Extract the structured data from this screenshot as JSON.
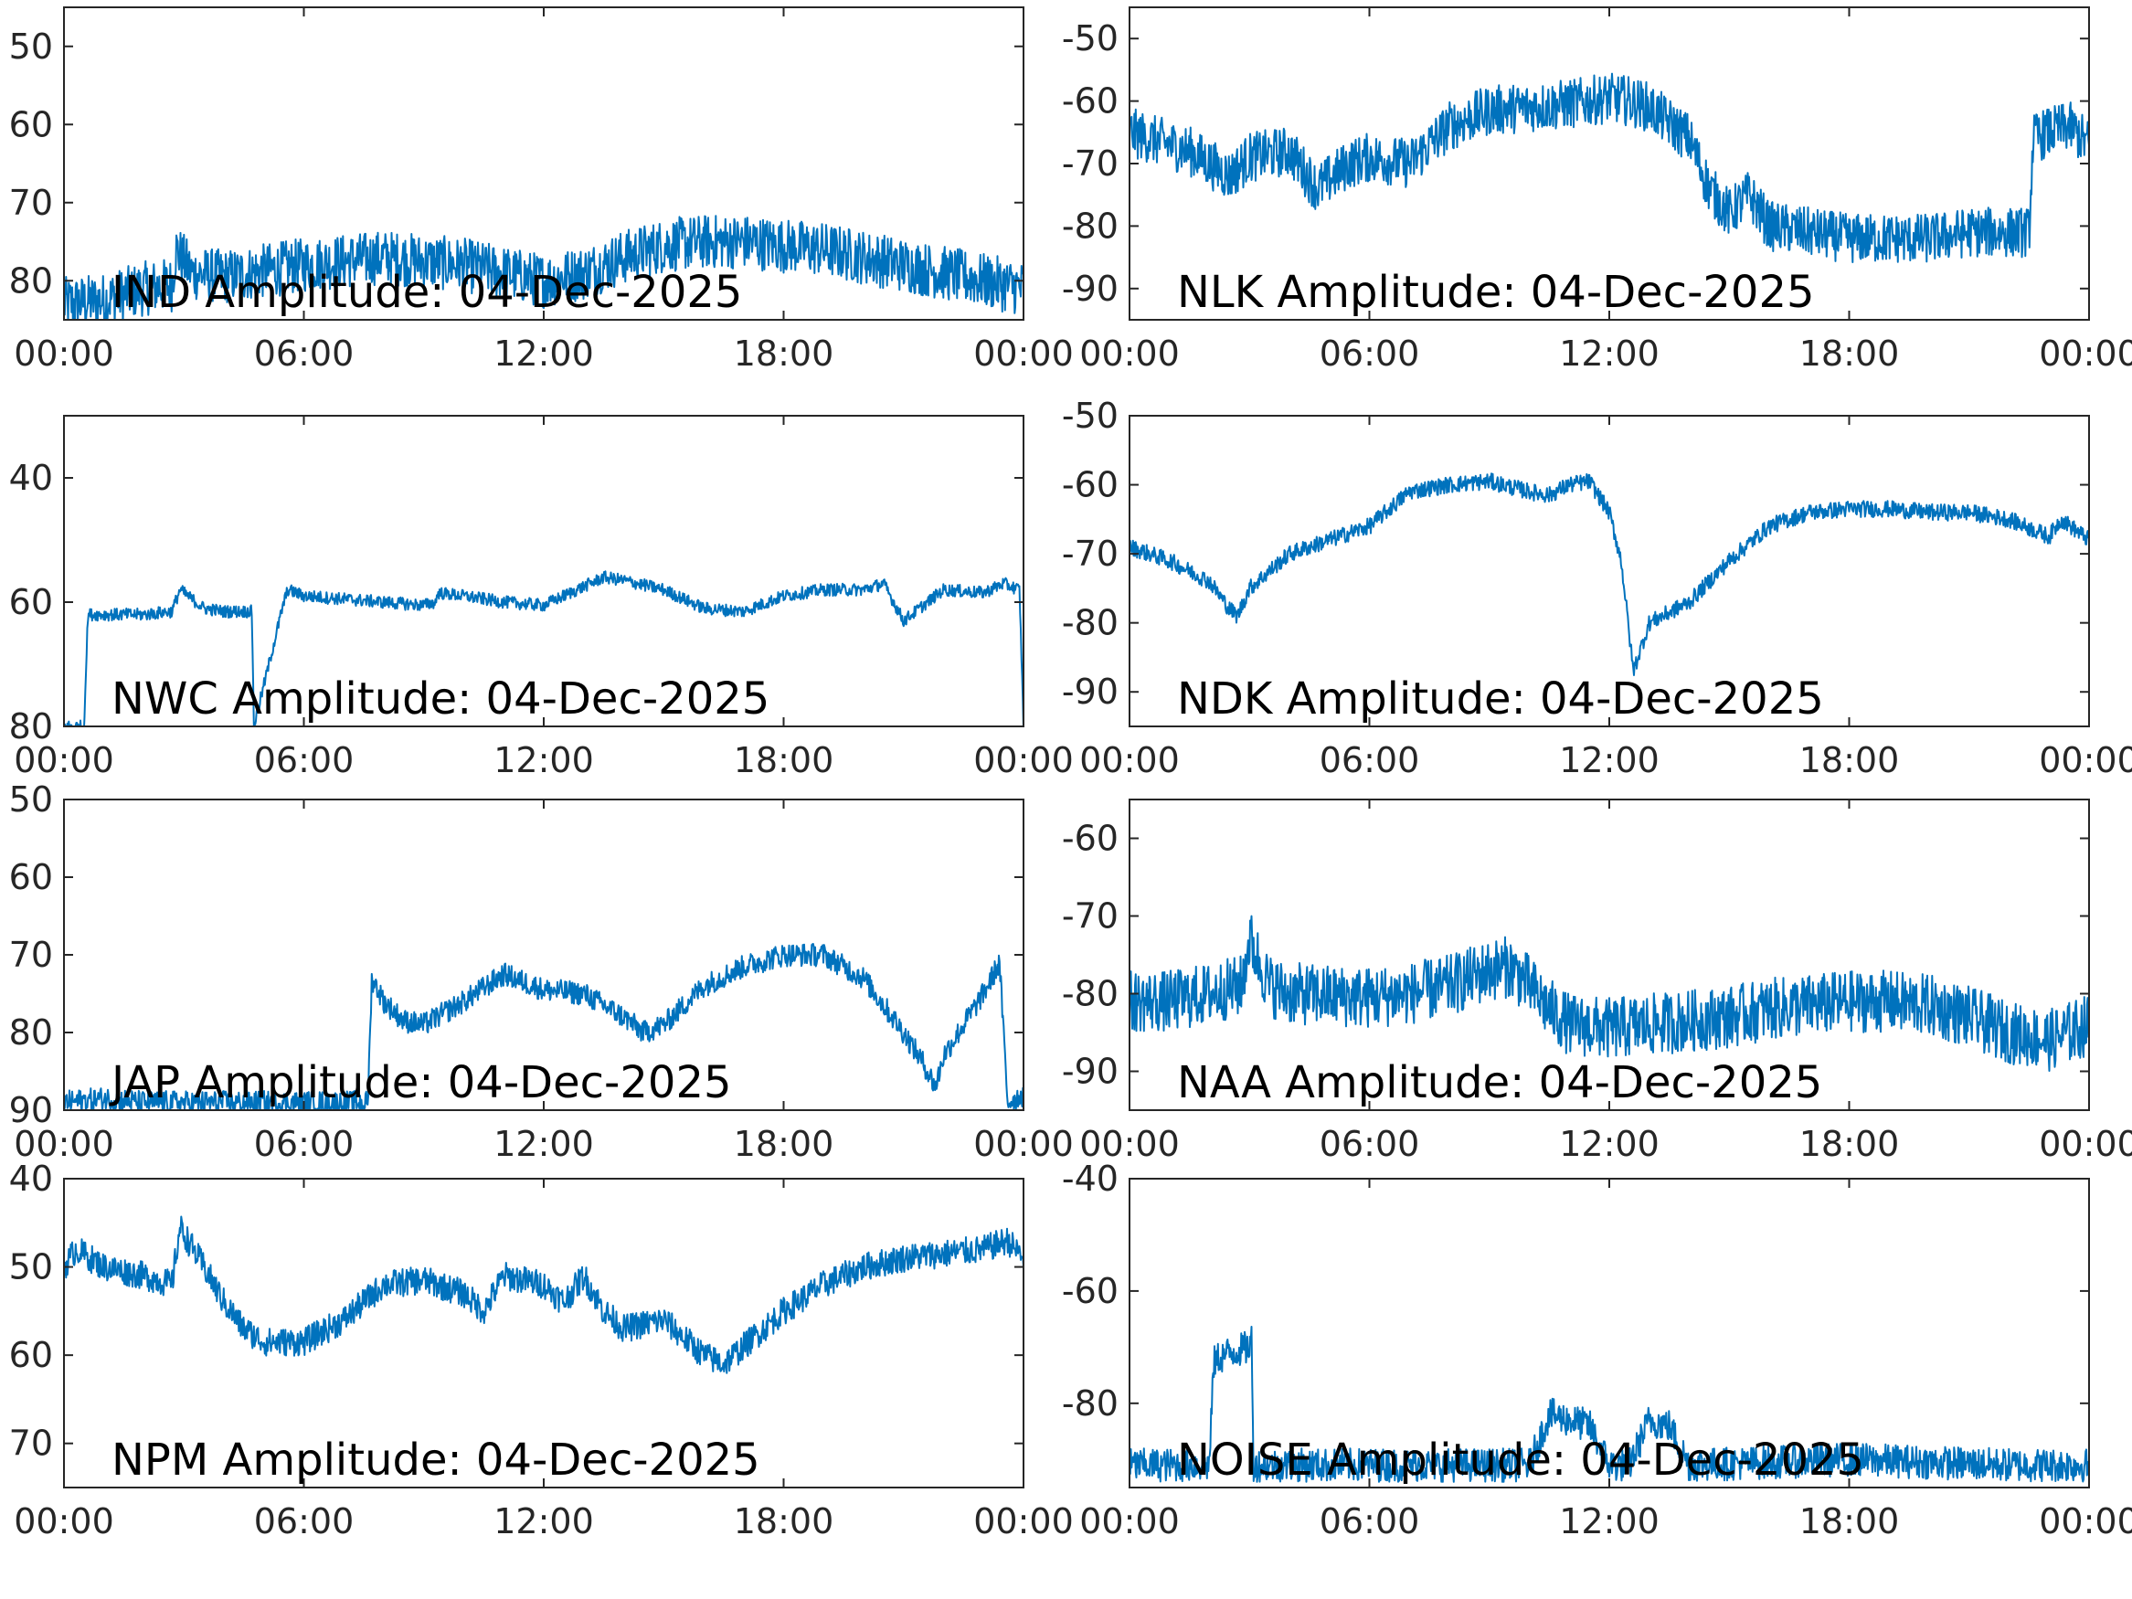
{
  "figure": {
    "line_color": "#0072BD",
    "background": "#ffffff"
  },
  "chart_data": [
    {
      "type": "line",
      "title": "IND Amplitude: 04-Dec-2025",
      "x_ticks": [
        "00:00",
        "06:00",
        "12:00",
        "18:00",
        "00:00"
      ],
      "xlim": [
        0,
        24
      ],
      "ylim": [
        -85,
        -45
      ],
      "yticks": [
        -80,
        -70,
        -60,
        -50
      ],
      "ytick_labels": [
        "80",
        "70",
        "60",
        "50"
      ],
      "series": [
        {
          "name": "IND",
          "x": [
            0,
            1,
            2,
            2.7,
            2.8,
            3.2,
            4,
            6,
            8,
            10,
            12,
            13,
            14,
            15,
            16,
            17,
            18,
            19,
            20,
            21,
            22,
            23,
            24
          ],
          "y": [
            -83,
            -82.5,
            -81,
            -80.5,
            -76,
            -79,
            -79.5,
            -78,
            -77,
            -78,
            -80,
            -79,
            -77,
            -75.5,
            -75,
            -75,
            -75.5,
            -76,
            -77,
            -78,
            -79,
            -80,
            -81
          ],
          "noise": 3.5
        }
      ]
    },
    {
      "type": "line",
      "title": "NLK Amplitude: 04-Dec-2025",
      "x_ticks": [
        "00:00",
        "06:00",
        "12:00",
        "18:00",
        "00:00"
      ],
      "xlim": [
        0,
        24
      ],
      "ylim": [
        -95,
        -45
      ],
      "yticks": [
        -90,
        -80,
        -70,
        -60,
        -50
      ],
      "ytick_labels": [
        "-90",
        "-80",
        "-70",
        "-60",
        "-50"
      ],
      "series": [
        {
          "name": "NLK",
          "x": [
            0,
            1,
            1.5,
            2.5,
            3,
            4,
            4.7,
            5.5,
            6,
            7,
            8,
            9,
            10,
            11,
            12,
            12.5,
            13,
            14,
            14.5,
            15,
            15.5,
            16,
            17,
            18,
            19,
            20,
            21,
            22,
            22.5,
            22.6,
            23,
            23.5,
            24
          ],
          "y": [
            -65,
            -67,
            -68,
            -72,
            -69,
            -68,
            -74,
            -70,
            -69,
            -70,
            -64,
            -61.5,
            -61,
            -60.5,
            -59.5,
            -60,
            -61,
            -66,
            -74,
            -78,
            -75,
            -80,
            -81,
            -82,
            -82,
            -82,
            -81,
            -81,
            -81,
            -66,
            -65,
            -64,
            -67
          ],
          "noise": 4
        }
      ]
    },
    {
      "type": "line",
      "title": "NWC Amplitude: 04-Dec-2025",
      "x_ticks": [
        "00:00",
        "06:00",
        "12:00",
        "18:00",
        "00:00"
      ],
      "xlim": [
        0,
        24
      ],
      "ylim": [
        -80,
        -30
      ],
      "yticks": [
        -80,
        -60,
        -40
      ],
      "ytick_labels": [
        "80",
        "60",
        "40"
      ],
      "series": [
        {
          "name": "NWC",
          "x": [
            0,
            0.5,
            0.6,
            1,
            2,
            2.7,
            2.9,
            3.5,
            4,
            4.7,
            4.75,
            5.5,
            5.6,
            6,
            7,
            8,
            9,
            9.3,
            9.35,
            10,
            11,
            12,
            13,
            13.5,
            14,
            15,
            16,
            17,
            18,
            19,
            20,
            20.5,
            21,
            22,
            23,
            23.5,
            23.9,
            24
          ],
          "y": [
            -80,
            -80,
            -62,
            -62,
            -62,
            -61.5,
            -58,
            -61,
            -61.5,
            -61.5,
            -80,
            -60,
            -58,
            -59,
            -59.5,
            -60,
            -60.5,
            -60,
            -58.5,
            -59,
            -60,
            -60.5,
            -57.5,
            -56,
            -56.5,
            -58,
            -61,
            -61.5,
            -59,
            -58,
            -58,
            -57,
            -63,
            -58,
            -58.5,
            -57,
            -58,
            -80
          ],
          "noise": 1
        }
      ]
    },
    {
      "type": "line",
      "title": "NDK Amplitude: 04-Dec-2025",
      "x_ticks": [
        "00:00",
        "06:00",
        "12:00",
        "18:00",
        "00:00"
      ],
      "xlim": [
        0,
        24
      ],
      "ylim": [
        -95,
        -50
      ],
      "yticks": [
        -90,
        -80,
        -70,
        -60,
        -50
      ],
      "ytick_labels": [
        "-90",
        "-80",
        "-70",
        "-60",
        "-50"
      ],
      "series": [
        {
          "name": "NDK",
          "x": [
            0,
            1,
            2,
            2.5,
            2.7,
            3,
            4,
            5,
            6,
            7,
            8,
            9,
            10,
            10.5,
            11,
            11.5,
            12,
            12.3,
            12.6,
            13,
            14,
            15,
            16,
            17,
            18,
            19,
            20,
            21,
            22,
            23,
            23.3,
            24
          ],
          "y": [
            -69,
            -71,
            -74,
            -78,
            -79,
            -75,
            -70,
            -68,
            -66,
            -61,
            -60,
            -59.5,
            -61,
            -61.5,
            -60,
            -59.5,
            -64,
            -71,
            -87,
            -80,
            -77,
            -71,
            -66,
            -64,
            -63.5,
            -63.5,
            -64,
            -64,
            -65,
            -67.5,
            -65,
            -68
          ],
          "noise": 1.2
        }
      ]
    },
    {
      "type": "line",
      "title": "JAP Amplitude: 04-Dec-2025",
      "x_ticks": [
        "00:00",
        "06:00",
        "12:00",
        "18:00",
        "00:00"
      ],
      "xlim": [
        0,
        24
      ],
      "ylim": [
        -90,
        -50
      ],
      "yticks": [
        -90,
        -80,
        -70,
        -60,
        -50
      ],
      "ytick_labels": [
        "90",
        "80",
        "70",
        "60",
        "50"
      ],
      "series": [
        {
          "name": "JAP",
          "x": [
            0,
            1,
            2,
            3,
            4,
            5,
            6,
            7,
            7.6,
            7.7,
            8,
            8.5,
            9,
            10,
            11,
            12,
            13,
            14,
            14.5,
            15,
            16,
            17,
            18,
            19,
            20,
            21,
            21.5,
            21.8,
            22,
            23,
            23.4,
            23.6,
            24
          ],
          "y": [
            -89,
            -88.5,
            -89,
            -89,
            -89,
            -89,
            -89,
            -89,
            -89,
            -73,
            -76,
            -78.5,
            -79,
            -76,
            -72.5,
            -74.5,
            -75,
            -78,
            -80,
            -79,
            -74,
            -71.5,
            -70,
            -70,
            -73,
            -80,
            -84,
            -87,
            -83,
            -75,
            -71,
            -89,
            -88
          ],
          "noise": 1.5
        }
      ]
    },
    {
      "type": "line",
      "title": "NAA Amplitude: 04-Dec-2025",
      "x_ticks": [
        "00:00",
        "06:00",
        "12:00",
        "18:00",
        "00:00"
      ],
      "xlim": [
        0,
        24
      ],
      "ylim": [
        -95,
        -55
      ],
      "yticks": [
        -90,
        -80,
        -70,
        -60
      ],
      "ytick_labels": [
        "-90",
        "-80",
        "-70",
        "-60"
      ],
      "series": [
        {
          "name": "NAA",
          "x": [
            0,
            1,
            2,
            2.8,
            3,
            3.5,
            4,
            6,
            7,
            8,
            9,
            9.5,
            10,
            10.5,
            11,
            12,
            13,
            14,
            15,
            16,
            17,
            18,
            19,
            20,
            21,
            22,
            23,
            24
          ],
          "y": [
            -81,
            -81,
            -80,
            -79,
            -73,
            -79,
            -80,
            -80.5,
            -80,
            -79,
            -77,
            -76.5,
            -79,
            -82,
            -84,
            -84.5,
            -84,
            -83.5,
            -83,
            -82,
            -81.5,
            -81,
            -81,
            -81.5,
            -83,
            -85,
            -86,
            -84
          ],
          "noise": 4
        }
      ]
    },
    {
      "type": "line",
      "title": "NPM Amplitude: 04-Dec-2025",
      "x_ticks": [
        "00:00",
        "06:00",
        "12:00",
        "18:00",
        "00:00"
      ],
      "xlim": [
        0,
        24
      ],
      "ylim": [
        -75,
        -40
      ],
      "yticks": [
        -70,
        -60,
        -50,
        -40
      ],
      "ytick_labels": [
        "70",
        "60",
        "50",
        "40"
      ],
      "series": [
        {
          "name": "NPM",
          "x": [
            0,
            0.3,
            1,
            2,
            2.7,
            2.9,
            3.5,
            4,
            4.5,
            5,
            6,
            7,
            8,
            9,
            10,
            10.5,
            11,
            12,
            12.5,
            13,
            13.5,
            14,
            15,
            16,
            16.5,
            17,
            18,
            19,
            20,
            21,
            22,
            23,
            23.6,
            24
          ],
          "y": [
            -50,
            -48,
            -50,
            -51,
            -52,
            -45.5,
            -50,
            -54,
            -57,
            -58.5,
            -58.5,
            -56,
            -52,
            -51.5,
            -53,
            -55,
            -51,
            -52,
            -54,
            -51,
            -55,
            -57,
            -56,
            -60,
            -61,
            -59,
            -55,
            -52,
            -50,
            -49,
            -48.5,
            -48,
            -47,
            -49
          ],
          "noise": 1.6
        }
      ]
    },
    {
      "type": "line",
      "title": "NOISE Amplitude: 04-Dec-2025",
      "x_ticks": [
        "00:00",
        "06:00",
        "12:00",
        "18:00",
        "00:00"
      ],
      "xlim": [
        0,
        24
      ],
      "ylim": [
        -95,
        -40
      ],
      "yticks": [
        -80,
        -60,
        -40
      ],
      "ytick_labels": [
        "-80",
        "-60",
        "-40"
      ],
      "series": [
        {
          "name": "NOISE",
          "x": [
            0,
            1,
            2,
            2.1,
            2.2,
            2.5,
            3,
            3.05,
            3.1,
            4,
            6,
            8,
            10,
            10.5,
            11,
            11.5,
            12,
            12.5,
            13,
            13.5,
            14,
            16,
            18,
            20,
            22,
            24
          ],
          "y": [
            -91,
            -91,
            -91,
            -73,
            -72,
            -71,
            -70,
            -68,
            -91,
            -91,
            -91,
            -91,
            -91,
            -82,
            -83,
            -84,
            -91,
            -91,
            -83,
            -84,
            -91,
            -90.5,
            -90,
            -90.5,
            -91,
            -91
          ],
          "noise": 3
        }
      ]
    }
  ]
}
